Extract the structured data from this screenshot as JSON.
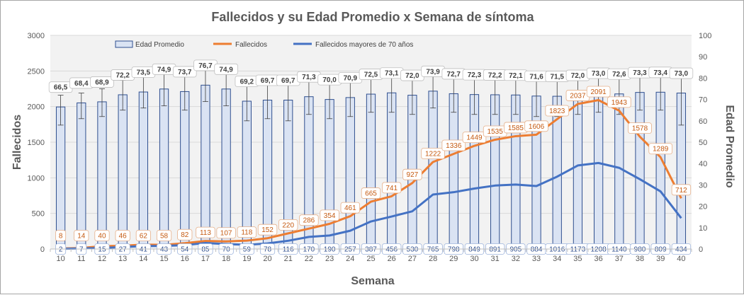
{
  "chart_data": {
    "type": "bar",
    "title": "Fallecidos y su Edad Promedio  x Semana de síntoma",
    "xlabel": "Semana",
    "ylabel": "Fallecidos",
    "y2label": "Edad Promedio",
    "ylim": [
      0,
      3000
    ],
    "y2lim": [
      0,
      100
    ],
    "yticks": [
      "0",
      "500",
      "1000",
      "1500",
      "2000",
      "2500",
      "3000"
    ],
    "y2ticks": [
      "0",
      "10",
      "20",
      "30",
      "40",
      "50",
      "60",
      "70",
      "80",
      "90",
      "100"
    ],
    "grid": true,
    "legend_position": "top",
    "categories": [
      "10",
      "11",
      "12",
      "13",
      "14",
      "15",
      "16",
      "17",
      "18",
      "19",
      "20",
      "21",
      "22",
      "23",
      "24",
      "25",
      "26",
      "27",
      "28",
      "29",
      "30",
      "31",
      "32",
      "33",
      "34",
      "35",
      "36",
      "37",
      "38",
      "39",
      "40"
    ],
    "series": [
      {
        "name": "Edad Promedio",
        "type": "bar",
        "axis": "right",
        "color": "#dae3f3",
        "border": "#2f4f8f",
        "values": [
          66.5,
          68.4,
          68.9,
          72.2,
          73.5,
          74.9,
          73.7,
          76.7,
          74.9,
          69.2,
          69.7,
          69.7,
          71.3,
          70.0,
          70.9,
          72.5,
          73.1,
          72.0,
          73.9,
          72.7,
          72.3,
          72.2,
          72.1,
          71.6,
          71.5,
          72.0,
          73.0,
          72.6,
          73.3,
          73.4,
          73.0
        ],
        "labels": [
          "66,5",
          "68,4",
          "68,9",
          "72,2",
          "73,5",
          "74,9",
          "73,7",
          "76,7",
          "74,9",
          "69,2",
          "69,7",
          "69,7",
          "71,3",
          "70,0",
          "70,9",
          "72,5",
          "73,1",
          "72,0",
          "73,9",
          "72,7",
          "72,3",
          "72,2",
          "72,1",
          "71,6",
          "71,5",
          "72,0",
          "73,0",
          "72,6",
          "73,3",
          "73,4",
          "73,0"
        ],
        "error_high": [
          72,
          73,
          75,
          79,
          81,
          83,
          82,
          85,
          82,
          80,
          78,
          79,
          80,
          79,
          80,
          82,
          83,
          81,
          84,
          82,
          81,
          80,
          80,
          79,
          80,
          80,
          81,
          81,
          82,
          81,
          81
        ],
        "error_low": [
          58,
          61,
          62,
          65,
          66,
          67,
          65,
          69,
          67,
          60,
          61,
          60,
          63,
          61,
          62,
          64,
          64,
          63,
          66,
          64,
          63,
          63,
          63,
          62,
          62,
          63,
          64,
          63,
          65,
          65,
          58
        ]
      },
      {
        "name": "Fallecidos",
        "type": "line",
        "axis": "left",
        "color": "#ed7d31",
        "values": [
          8,
          14,
          40,
          46,
          62,
          58,
          82,
          113,
          107,
          118,
          152,
          220,
          286,
          354,
          461,
          665,
          741,
          927,
          1222,
          1336,
          1449,
          1535,
          1585,
          1606,
          1823,
          2037,
          2091,
          1943,
          1578,
          1289,
          712
        ]
      },
      {
        "name": "Fallecidos mayores de 70 años",
        "type": "line",
        "axis": "left",
        "color": "#4472c4",
        "values": [
          2,
          7,
          15,
          27,
          41,
          43,
          54,
          85,
          70,
          59,
          78,
          116,
          170,
          190,
          257,
          387,
          456,
          530,
          765,
          798,
          849,
          891,
          905,
          884,
          1016,
          1173,
          1208,
          1140,
          980,
          809,
          434
        ]
      }
    ]
  }
}
